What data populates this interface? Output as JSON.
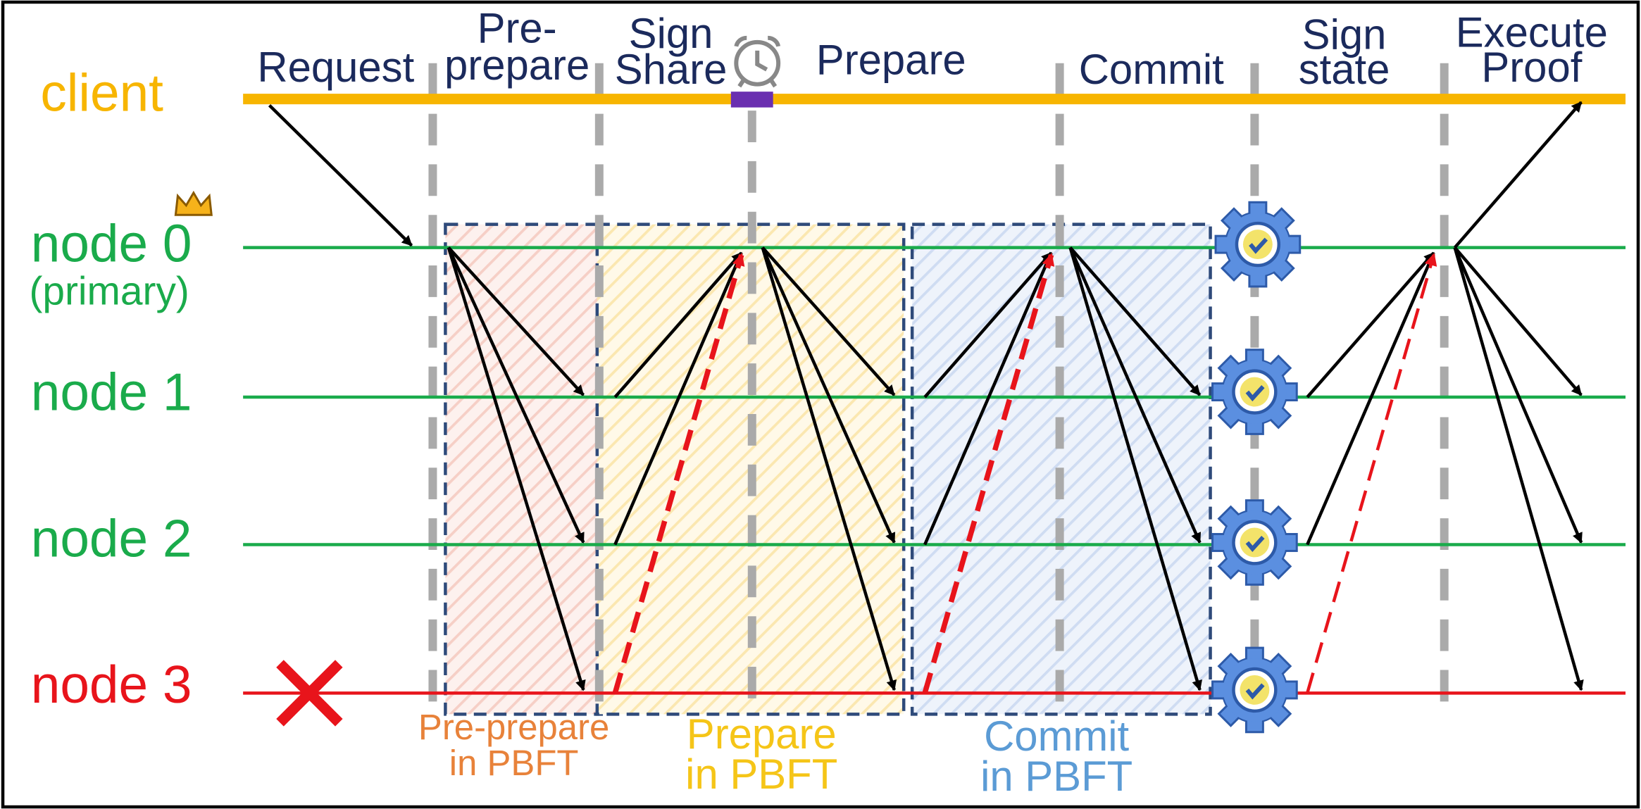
{
  "client_label": "client",
  "nodes": [
    {
      "label": "node 0",
      "sub": "(primary)"
    },
    {
      "label": "node 1"
    },
    {
      "label": "node 2"
    },
    {
      "label": "node 3"
    }
  ],
  "phases": [
    {
      "lines": [
        "Request"
      ]
    },
    {
      "lines": [
        "Pre-",
        "prepare"
      ]
    },
    {
      "lines": [
        "Sign",
        "Share"
      ]
    },
    {
      "lines": [
        "Prepare"
      ]
    },
    {
      "lines": [
        "Commit"
      ]
    },
    {
      "lines": [
        "Sign",
        "state"
      ]
    },
    {
      "lines": [
        "Execute",
        "Proof"
      ]
    }
  ],
  "boxes": [
    {
      "lines": [
        "Pre-prepare",
        "in PBFT"
      ]
    },
    {
      "lines": [
        "Prepare",
        "in PBFT"
      ]
    },
    {
      "lines": [
        "Commit",
        "in PBFT"
      ]
    }
  ]
}
